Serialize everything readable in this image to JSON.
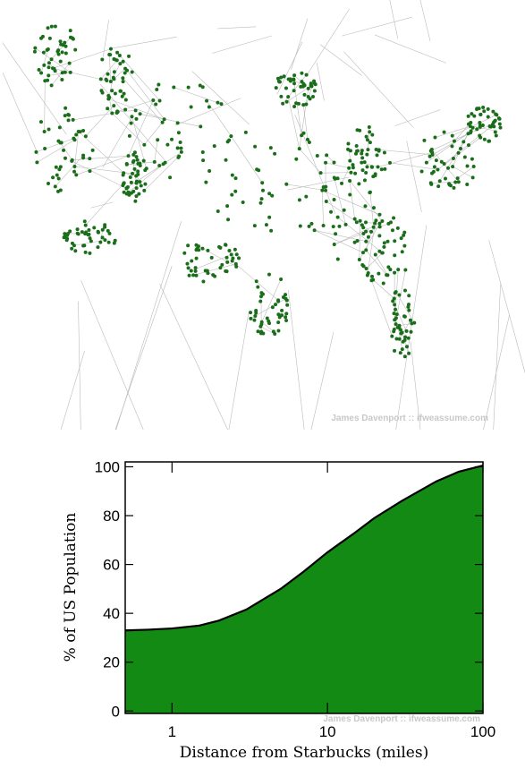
{
  "map": {
    "credit": "James Davenport :: ifweassume.com"
  },
  "chart_data": {
    "type": "area",
    "xlabel": "Distance from Starbucks (miles)",
    "ylabel": "% of US Population",
    "credit": "James Davenport :: ifweassume.com",
    "x": [
      0.5,
      0.7,
      1,
      1.5,
      2,
      3,
      5,
      7,
      10,
      15,
      20,
      30,
      50,
      70,
      100
    ],
    "values": [
      33,
      33.3,
      33.8,
      35,
      37,
      41.5,
      50,
      57,
      65,
      73,
      79,
      86,
      94,
      98,
      100.5
    ],
    "color": "#138a13",
    "xscale": "log",
    "xlim": [
      0.5,
      100
    ],
    "xticks": [
      1,
      10,
      100
    ],
    "ylim": [
      -1,
      102
    ],
    "yticks": [
      0,
      20,
      40,
      60,
      80,
      100
    ]
  }
}
